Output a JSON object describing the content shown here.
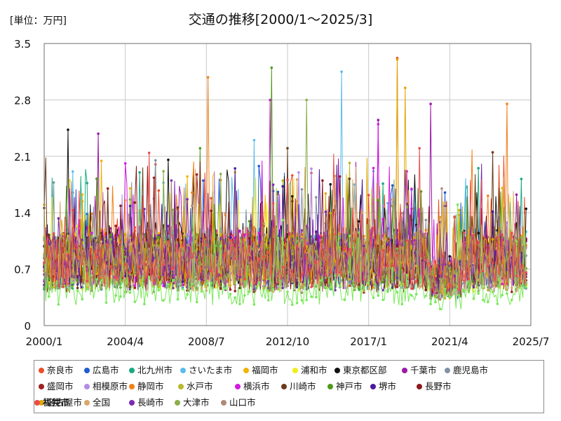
{
  "chart_data": {
    "type": "line",
    "title": "交通の推移[2000/1～2025/3]",
    "unit_label": "[単位：万円]",
    "xlabel": "",
    "ylabel": "",
    "ylim": [
      0,
      3.5
    ],
    "yticks": [
      "0",
      "0.7",
      "1.4",
      "2.1",
      "2.8",
      "3.5"
    ],
    "xticks": [
      "2000/1",
      "2004/4",
      "2008/7",
      "2012/10",
      "2017/1",
      "2021/4",
      "2025/7"
    ],
    "x_start": "2000/1",
    "x_end": "2025/3",
    "x_axis_end": "2025/7",
    "grid": true,
    "legend_placement": "bottom",
    "series": [
      {
        "name": "奈良市",
        "color": "#e8502a",
        "base": 0.82,
        "peaks": [
          [
            222,
            3.32
          ],
          [
            70,
            2.0
          ]
        ]
      },
      {
        "name": "広島市",
        "color": "#1f5bd1",
        "base": 0.8,
        "peaks": [
          [
            100,
            1.8
          ]
        ]
      },
      {
        "name": "北九州市",
        "color": "#1aaa82",
        "base": 0.78,
        "peaks": [
          [
            60,
            1.9
          ]
        ]
      },
      {
        "name": "さいたま市",
        "color": "#5bbcee",
        "base": 0.84,
        "peaks": [
          [
            187,
            3.15
          ],
          [
            132,
            2.3
          ]
        ]
      },
      {
        "name": "福岡市",
        "color": "#f2b400",
        "base": 0.8,
        "peaks": [
          [
            90,
            1.85
          ]
        ]
      },
      {
        "name": "浦和市",
        "color": "#f2ec1a",
        "base": 0.74,
        "peaks": [
          [
            16,
            1.8
          ]
        ]
      },
      {
        "name": "東京都区部",
        "color": "#111111",
        "base": 0.9,
        "peaks": [
          [
            15,
            2.43
          ],
          [
            303,
            1.45
          ]
        ]
      },
      {
        "name": "千葉市",
        "color": "#9a1aa6",
        "base": 0.86,
        "peaks": [
          [
            210,
            2.55
          ],
          [
            243,
            2.75
          ],
          [
            34,
            2.38
          ]
        ]
      },
      {
        "name": "鹿児島市",
        "color": "#7f93a4",
        "base": 0.8,
        "peaks": [
          [
            70,
            2.05
          ]
        ]
      },
      {
        "name": "盛岡市",
        "color": "#9c2222",
        "base": 0.72,
        "peaks": [
          [
            40,
            1.7
          ]
        ]
      },
      {
        "name": "相模原市",
        "color": "#b48ae8",
        "base": 0.8,
        "peaks": [
          [
            160,
            1.9
          ]
        ]
      },
      {
        "name": "静岡市",
        "color": "#f2801a",
        "base": 0.86,
        "peaks": [
          [
            103,
            3.08
          ],
          [
            291,
            2.75
          ]
        ]
      },
      {
        "name": "水戸市",
        "color": "#b8b82a",
        "base": 0.76,
        "peaks": [
          [
            150,
            1.8
          ]
        ]
      },
      {
        "name": "横浜市",
        "color": "#d21ae0",
        "base": 0.86,
        "peaks": [
          [
            142,
            2.8
          ],
          [
            210,
            2.5
          ]
        ]
      },
      {
        "name": "川崎市",
        "color": "#6a3a1a",
        "base": 0.8,
        "peaks": [
          [
            153,
            2.2
          ],
          [
            282,
            2.15
          ]
        ]
      },
      {
        "name": "神戸市",
        "color": "#4e9a1a",
        "base": 0.8,
        "peaks": [
          [
            143,
            3.2
          ],
          [
            98,
            2.2
          ]
        ]
      },
      {
        "name": "堺市",
        "color": "#4a1a9a",
        "base": 0.8,
        "peaks": [
          [
            120,
            1.95
          ]
        ]
      },
      {
        "name": "長野市",
        "color": "#8c1a1a",
        "base": 0.76,
        "peaks": [
          [
            175,
            1.8
          ]
        ]
      },
      {
        "name": "名古屋市",
        "color": "#e0a800",
        "base": 0.82,
        "peaks": [
          [
            222,
            3.3
          ],
          [
            227,
            2.95
          ]
        ]
      },
      {
        "name": "全国",
        "color": "#d9a86a",
        "base": 0.74,
        "peaks": [
          [
            200,
            1.4
          ]
        ]
      },
      {
        "name": "長崎市",
        "color": "#7a2ab0",
        "base": 0.78,
        "peaks": [
          [
            80,
            1.8
          ]
        ]
      },
      {
        "name": "大津市",
        "color": "#8aae4a",
        "base": 0.78,
        "peaks": [
          [
            165,
            2.8
          ]
        ]
      },
      {
        "name": "山口市",
        "color": "#b08a78",
        "base": 0.72,
        "peaks": [
          [
            250,
            1.7
          ]
        ]
      },
      {
        "name": "福井市",
        "color": "#7ae85a",
        "base": 0.44,
        "peaks": [
          [
            260,
            1.5
          ]
        ]
      },
      {
        "name": "札幌市",
        "color": "#ee4a4a",
        "base": 0.8,
        "peaks": [
          [
            236,
            2.2
          ]
        ]
      }
    ]
  }
}
